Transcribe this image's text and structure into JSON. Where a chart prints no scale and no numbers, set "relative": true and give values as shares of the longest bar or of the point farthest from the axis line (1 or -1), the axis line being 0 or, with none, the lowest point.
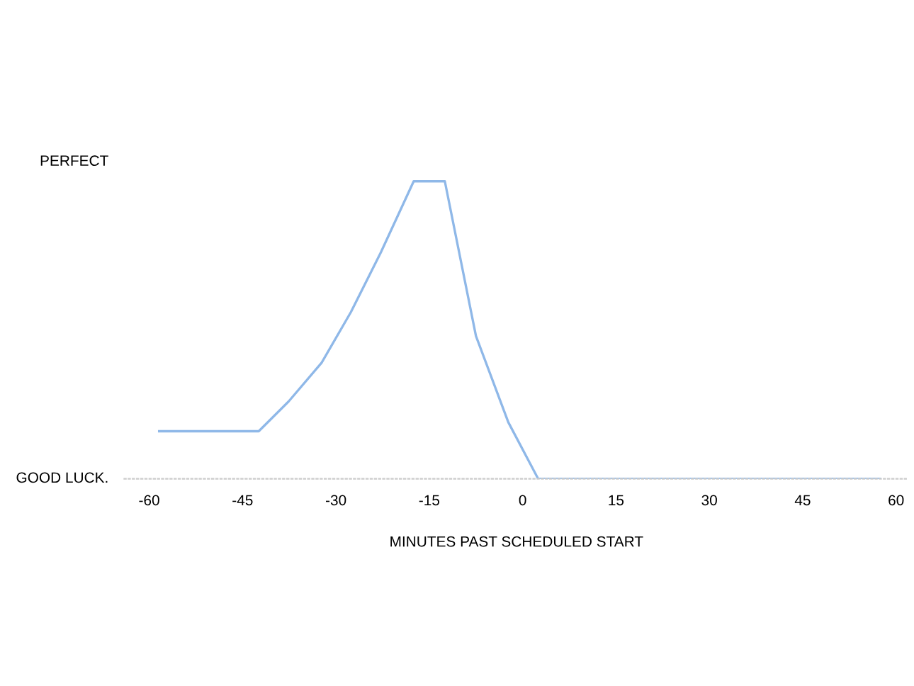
{
  "chart_data": {
    "type": "line",
    "xlabel": "MINUTES PAST SCHEDULED START",
    "series": [
      {
        "color": "#8fb8e8",
        "x": [
          -58.4,
          -42.4,
          -37.6,
          -32.3,
          -27.6,
          -22.8,
          -17.5,
          -12.5,
          -7.5,
          -2.3,
          2.5,
          57.4
        ],
        "values": [
          0.16,
          0.16,
          0.26,
          0.39,
          0.56,
          0.76,
          1,
          1,
          0.48,
          0.19,
          0,
          0
        ]
      }
    ],
    "relative": true,
    "annotations": [
      "PERFECT",
      "GOOD LUCK."
    ],
    "xlim": [
      -64,
      62
    ],
    "xticks": [
      -60,
      -45,
      -30,
      -15,
      0,
      15,
      30,
      45,
      60
    ],
    "grid": false,
    "legend": false,
    "marker": "none",
    "line_style": "solid"
  }
}
